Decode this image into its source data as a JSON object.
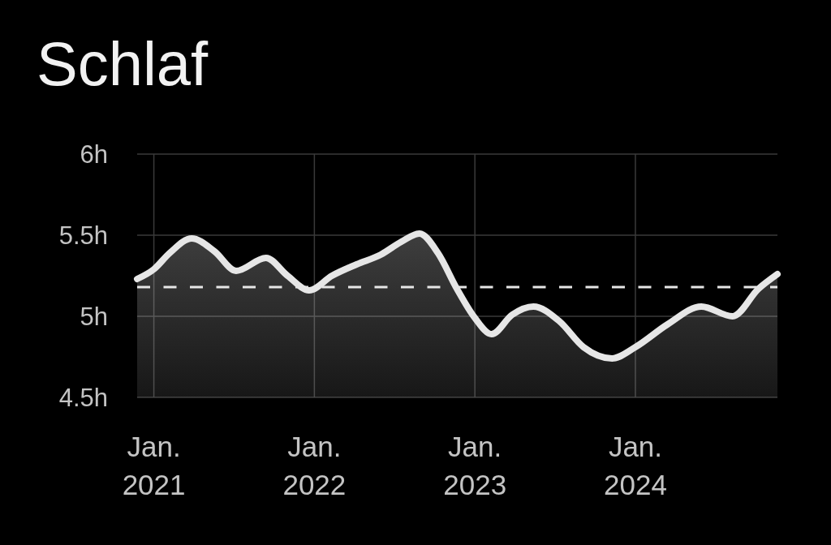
{
  "chart_data": {
    "type": "area",
    "title": "Schlaf",
    "x": [
      "2020-11-24",
      "2021-01-01",
      "2021-02-06",
      "2021-03-28",
      "2021-05-19",
      "2021-07-07",
      "2021-09-13",
      "2021-11-01",
      "2021-12-20",
      "2022-02-10",
      "2022-04-07",
      "2022-06-01",
      "2022-07-18",
      "2022-08-28",
      "2022-10-09",
      "2022-11-21",
      "2023-01-01",
      "2023-02-08",
      "2023-03-27",
      "2023-05-14",
      "2023-07-12",
      "2023-09-05",
      "2023-11-09",
      "2024-01-01",
      "2024-03-14",
      "2024-05-30",
      "2024-08-09",
      "2024-10-07",
      "2024-11-19"
    ],
    "values": [
      5.23,
      5.29,
      5.39,
      5.48,
      5.4,
      5.28,
      5.36,
      5.25,
      5.16,
      5.25,
      5.32,
      5.38,
      5.46,
      5.51,
      5.39,
      5.17,
      4.99,
      4.89,
      5.01,
      5.06,
      4.97,
      4.81,
      4.74,
      4.81,
      4.95,
      5.06,
      5.0,
      5.17,
      5.26
    ],
    "color": "#e6e6e6",
    "xlim": [
      "2020-11-24",
      "2024-11-19"
    ],
    "xticks": [
      {
        "value": "2021-01-01",
        "label": "Jan. 2021"
      },
      {
        "value": "2022-01-01",
        "label": "Jan. 2022"
      },
      {
        "value": "2023-01-01",
        "label": "Jan. 2023"
      },
      {
        "value": "2024-01-01",
        "label": "Jan. 2024"
      }
    ],
    "ylim": [
      4.5,
      6
    ],
    "yticks": [
      {
        "value": 4.5,
        "label": "4.5h"
      },
      {
        "value": 5,
        "label": "5h"
      },
      {
        "value": 5.5,
        "label": "5.5h"
      },
      {
        "value": 6,
        "label": "6h"
      }
    ],
    "grid": true,
    "ref_lines": [
      {
        "axis": "y",
        "value": 5.18,
        "line_style": "dashed",
        "color": "#e6e6e6"
      }
    ]
  }
}
